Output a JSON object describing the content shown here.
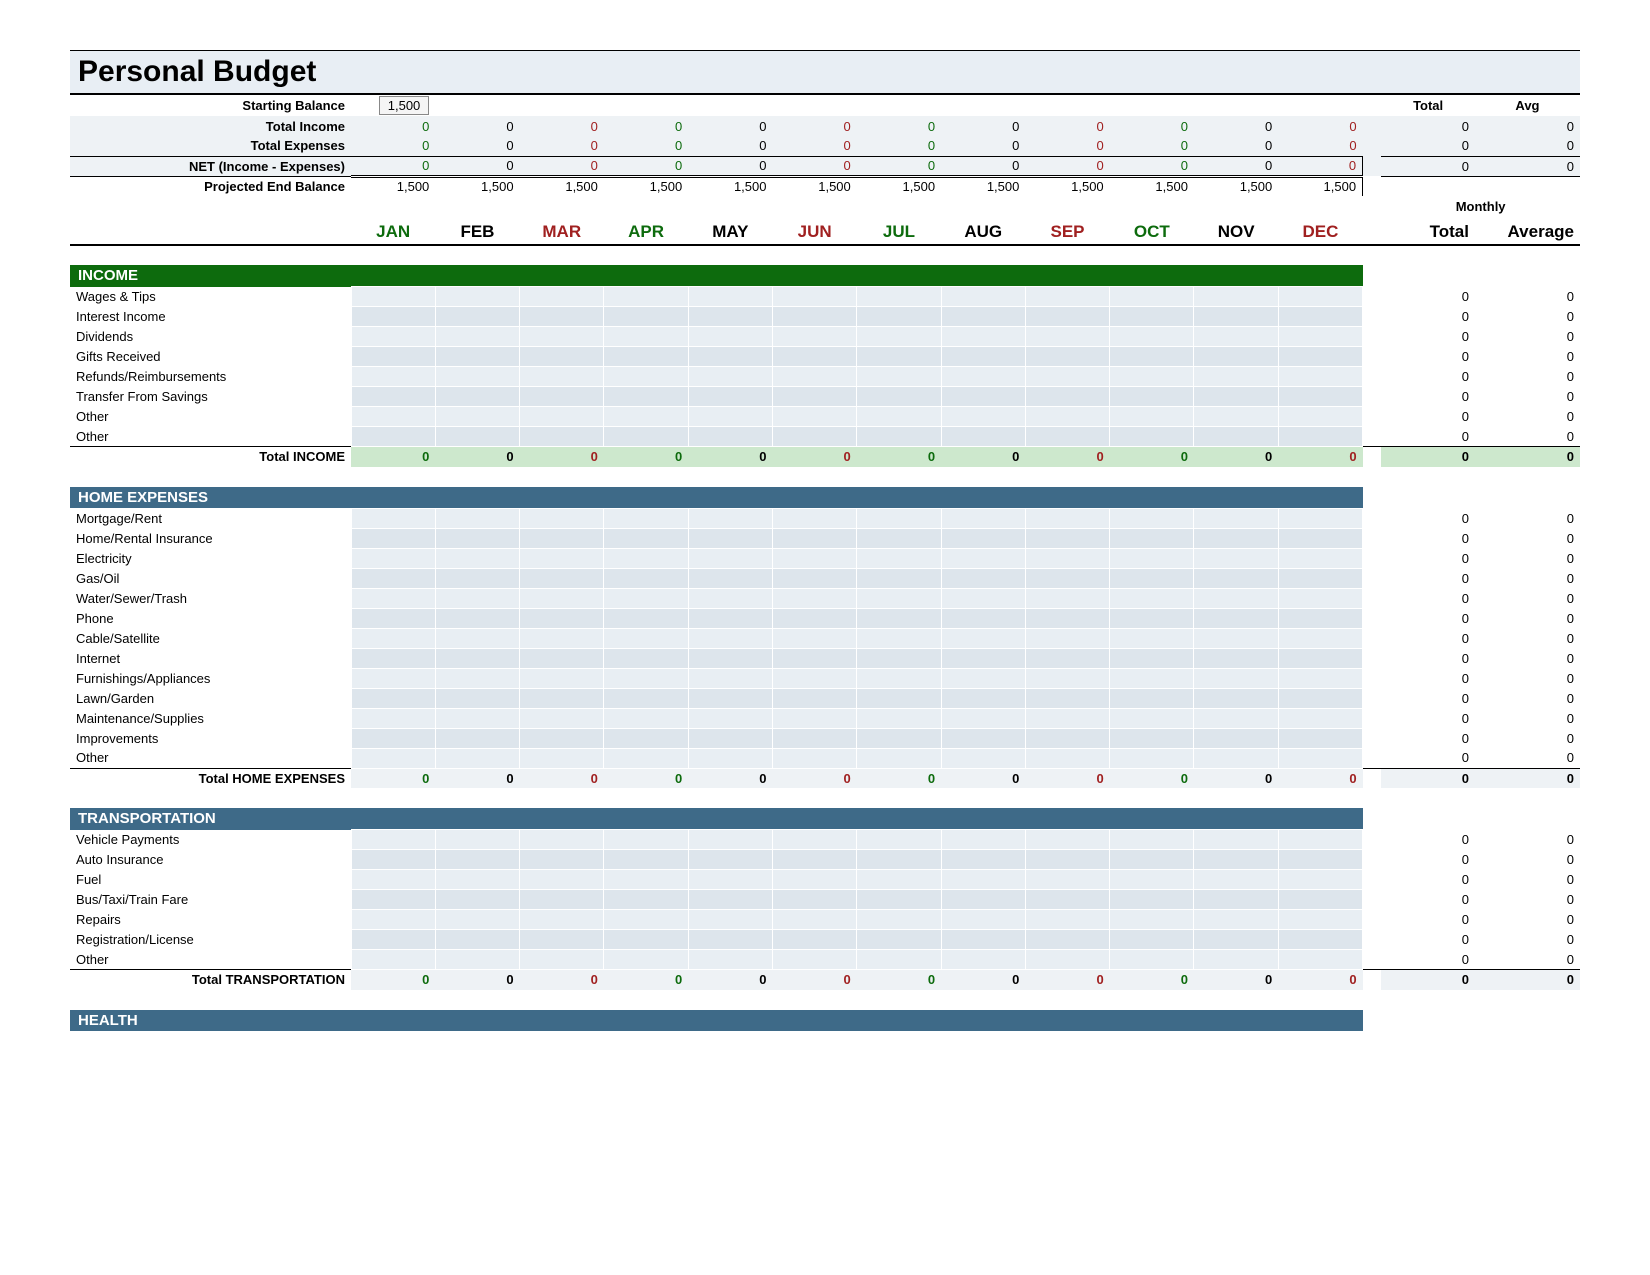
{
  "title": "Personal Budget",
  "months": [
    "JAN",
    "FEB",
    "MAR",
    "APR",
    "MAY",
    "JUN",
    "JUL",
    "AUG",
    "SEP",
    "OCT",
    "NOV",
    "DEC"
  ],
  "month_colors": [
    "#0d6b0d",
    "#000000",
    "#a02020",
    "#0d6b0d",
    "#000000",
    "#a02020",
    "#0d6b0d",
    "#000000",
    "#a02020",
    "#0d6b0d",
    "#000000",
    "#a02020"
  ],
  "header_right_top": [
    "Total",
    "Avg"
  ],
  "monthly_line1": "Monthly",
  "monthly_line2a": "Total",
  "monthly_line2b": "Average",
  "summary": [
    {
      "label": "Starting Balance",
      "special": "input",
      "value": "1,500"
    },
    {
      "label": "Total Income",
      "vals": [
        "0",
        "0",
        "0",
        "0",
        "0",
        "0",
        "0",
        "0",
        "0",
        "0",
        "0",
        "0"
      ],
      "total": "0",
      "avg": "0"
    },
    {
      "label": "Total Expenses",
      "vals": [
        "0",
        "0",
        "0",
        "0",
        "0",
        "0",
        "0",
        "0",
        "0",
        "0",
        "0",
        "0"
      ],
      "total": "0",
      "avg": "0"
    },
    {
      "label": "NET (Income - Expenses)",
      "vals": [
        "0",
        "0",
        "0",
        "0",
        "0",
        "0",
        "0",
        "0",
        "0",
        "0",
        "0",
        "0"
      ],
      "total": "0",
      "avg": "0",
      "net": true
    },
    {
      "label": "Projected End Balance",
      "vals": [
        "1,500",
        "1,500",
        "1,500",
        "1,500",
        "1,500",
        "1,500",
        "1,500",
        "1,500",
        "1,500",
        "1,500",
        "1,500",
        "1,500"
      ]
    }
  ],
  "value_colors": [
    "#0d6b0d",
    "#000000",
    "#a02020",
    "#0d6b0d",
    "#000000",
    "#a02020",
    "#0d6b0d",
    "#000000",
    "#a02020",
    "#0d6b0d",
    "#000000",
    "#a02020"
  ],
  "sections": [
    {
      "name": "INCOME",
      "class": "section-income",
      "total_class": "total-income",
      "rows": [
        "Wages & Tips",
        "Interest Income",
        "Dividends",
        "Gifts Received",
        "Refunds/Reimbursements",
        "Transfer From Savings",
        "Other",
        "Other"
      ],
      "total_label": "Total INCOME",
      "total_vals": [
        "0",
        "0",
        "0",
        "0",
        "0",
        "0",
        "0",
        "0",
        "0",
        "0",
        "0",
        "0"
      ],
      "total": "0",
      "avg": "0"
    },
    {
      "name": "HOME EXPENSES",
      "class": "section-exp",
      "total_class": "total-exp",
      "rows": [
        "Mortgage/Rent",
        "Home/Rental Insurance",
        "Electricity",
        "Gas/Oil",
        "Water/Sewer/Trash",
        "Phone",
        "Cable/Satellite",
        "Internet",
        "Furnishings/Appliances",
        "Lawn/Garden",
        "Maintenance/Supplies",
        "Improvements",
        "Other"
      ],
      "total_label": "Total HOME EXPENSES",
      "total_vals": [
        "0",
        "0",
        "0",
        "0",
        "0",
        "0",
        "0",
        "0",
        "0",
        "0",
        "0",
        "0"
      ],
      "total": "0",
      "avg": "0"
    },
    {
      "name": "TRANSPORTATION",
      "class": "section-exp",
      "total_class": "total-exp",
      "rows": [
        "Vehicle Payments",
        "Auto Insurance",
        "Fuel",
        "Bus/Taxi/Train Fare",
        "Repairs",
        "Registration/License",
        "Other"
      ],
      "total_label": "Total TRANSPORTATION",
      "total_vals": [
        "0",
        "0",
        "0",
        "0",
        "0",
        "0",
        "0",
        "0",
        "0",
        "0",
        "0",
        "0"
      ],
      "total": "0",
      "avg": "0"
    },
    {
      "name": "HEALTH",
      "class": "section-exp",
      "header_only": true
    }
  ]
}
